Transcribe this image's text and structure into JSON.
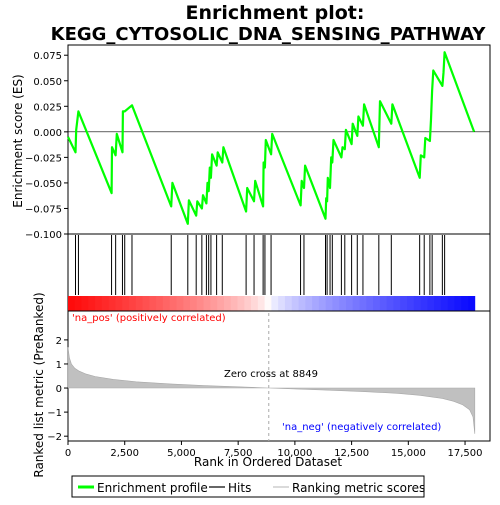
{
  "chart_data": {
    "type": "line",
    "title_line1": "Enrichment plot:",
    "title_line2": "KEGG_CYTOSOLIC_DNA_SENSING_PATHWAY",
    "top_panel": {
      "ylabel": "Enrichment score (ES)",
      "ylim": [
        -0.1,
        0.085
      ],
      "yticks": [
        -0.1,
        -0.075,
        -0.05,
        -0.025,
        0.0,
        0.025,
        0.05,
        0.075
      ],
      "ytick_labels": [
        "−0.100",
        "−0.075",
        "−0.050",
        "−0.025",
        "0.000",
        "0.025",
        "0.050",
        "0.075"
      ],
      "line_color": "#00ff00",
      "es_profile": {
        "x": [
          0,
          330,
          360,
          460,
          1920,
          1940,
          2100,
          2150,
          2400,
          2420,
          2500,
          2820,
          4550,
          4600,
          5280,
          5330,
          5650,
          5700,
          5900,
          5950,
          6100,
          6150,
          6200,
          6250,
          6300,
          6350,
          6550,
          6600,
          6800,
          6850,
          7850,
          7900,
          8200,
          8250,
          8600,
          8620,
          8680,
          8720,
          8950,
          9000,
          10250,
          10300,
          10400,
          10450,
          11350,
          11380,
          11420,
          11450,
          11550,
          11600,
          11650,
          11700,
          12050,
          12100,
          12200,
          12250,
          12500,
          12550,
          12750,
          12800,
          13000,
          13050,
          13700,
          13750,
          14250,
          14300,
          15500,
          15550,
          15700,
          15750,
          15950,
          16000,
          16050,
          16100,
          16500,
          16550,
          16600,
          17900
        ],
        "y": [
          -0.005,
          -0.02,
          0.002,
          0.02,
          -0.06,
          -0.015,
          -0.023,
          -0.002,
          -0.02,
          0.02,
          0.02,
          0.026,
          -0.073,
          -0.05,
          -0.09,
          -0.067,
          -0.082,
          -0.068,
          -0.075,
          -0.062,
          -0.07,
          -0.05,
          -0.058,
          -0.035,
          -0.045,
          -0.022,
          -0.033,
          -0.02,
          -0.03,
          -0.015,
          -0.078,
          -0.055,
          -0.068,
          -0.048,
          -0.073,
          -0.03,
          -0.035,
          -0.008,
          -0.022,
          -0.002,
          -0.072,
          -0.048,
          -0.055,
          -0.033,
          -0.085,
          -0.065,
          -0.068,
          -0.045,
          -0.055,
          -0.025,
          -0.03,
          -0.008,
          -0.025,
          -0.015,
          -0.017,
          0.002,
          -0.012,
          0.008,
          -0.004,
          0.015,
          0.006,
          0.027,
          -0.015,
          0.03,
          0.008,
          0.027,
          -0.045,
          -0.023,
          -0.025,
          -0.006,
          -0.009,
          0.012,
          0.04,
          0.06,
          0.045,
          0.058,
          0.078,
          0.0
        ]
      }
    },
    "hits_panel": {
      "hit_positions": [
        330,
        460,
        1920,
        2100,
        2400,
        2500,
        2820,
        4550,
        5280,
        5650,
        5900,
        6100,
        6200,
        6300,
        6550,
        6800,
        7850,
        8200,
        8600,
        8680,
        8950,
        10250,
        10400,
        11350,
        11420,
        11550,
        11650,
        12050,
        12200,
        12500,
        12750,
        13000,
        13700,
        14250,
        15500,
        15700,
        15950,
        16050,
        16500,
        16600
      ]
    },
    "ranking_panel": {
      "pos_label": "'na_pos' (positively correlated)",
      "neg_label": "'na_neg' (negatively correlated)",
      "zero_cross_label": "Zero cross at 8849",
      "zero_cross": 8849,
      "ylabel": "Ranked list metric (PreRanked)",
      "ylim": [
        -2.2,
        3.2
      ],
      "yticks": [
        -2,
        -1,
        0,
        1,
        2
      ],
      "ytick_labels": [
        "−2",
        "−1",
        "0",
        "1",
        "2"
      ],
      "metric_curve": {
        "x": [
          0,
          60,
          150,
          300,
          500,
          800,
          1200,
          2000,
          3000,
          4500,
          6000,
          7500,
          8849,
          10000,
          11500,
          13000,
          14500,
          15500,
          16500,
          17000,
          17400,
          17700,
          17850,
          17930
        ],
        "y": [
          1.7,
          1.25,
          1.0,
          0.82,
          0.7,
          0.58,
          0.48,
          0.36,
          0.26,
          0.17,
          0.1,
          0.05,
          0.0,
          -0.04,
          -0.09,
          -0.15,
          -0.22,
          -0.3,
          -0.43,
          -0.55,
          -0.7,
          -0.9,
          -1.2,
          -1.9
        ]
      }
    },
    "xaxis": {
      "xlabel": "Rank in Ordered Dataset",
      "xlim": [
        0,
        18600
      ],
      "xticks": [
        0,
        2500,
        5000,
        7500,
        10000,
        12500,
        15000,
        17500
      ],
      "xtick_labels": [
        "0",
        "2,500",
        "5,000",
        "7,500",
        "10,000",
        "12,500",
        "15,000",
        "17,500"
      ],
      "n_genes": 17930
    },
    "legend": {
      "items": [
        {
          "label": "Enrichment profile",
          "color": "#00ff00"
        },
        {
          "label": "Hits",
          "color": "#000000"
        },
        {
          "label": "Ranking metric scores",
          "color": "#c0c0c0"
        }
      ]
    },
    "colors": {
      "bar_pos": "#ff0000",
      "bar_neg": "#0000ff",
      "zero_line": "#aaaaaa",
      "metric_fill": "#c0c0c0",
      "pos_label_color": "#ff0000",
      "neg_label_color": "#0000ff"
    }
  }
}
